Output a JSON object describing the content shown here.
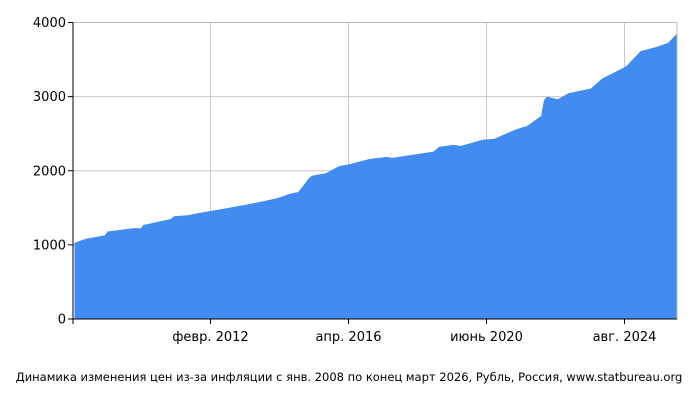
{
  "chart_data": {
    "type": "area",
    "title": "",
    "caption": "Динамика изменения цен из-за инфляции с янв. 2008 по конец март 2026, Рубль, Россия, www.statbureau.org",
    "xlabel": "",
    "ylabel": "",
    "ylim": [
      0,
      4000
    ],
    "xlim": [
      "2008-01",
      "2026-03"
    ],
    "yticks": [
      "0",
      "1000",
      "2000",
      "3000",
      "4000"
    ],
    "xticks": [
      {
        "date": "2012-02",
        "label": "февр. 2012"
      },
      {
        "date": "2016-04",
        "label": "апр. 2016"
      },
      {
        "date": "2020-06",
        "label": "июнь 2020"
      },
      {
        "date": "2024-08",
        "label": "авг. 2024"
      }
    ],
    "grid": true,
    "color": "#428bf0",
    "x": [
      "2008-01",
      "2008-05",
      "2008-12",
      "2009-01",
      "2009-11",
      "2010-01",
      "2010-02",
      "2010-12",
      "2011-01",
      "2011-06",
      "2011-10",
      "2012-06",
      "2013-03",
      "2013-10",
      "2014-03",
      "2014-07",
      "2014-10",
      "2014-11",
      "2015-02",
      "2015-03",
      "2015-08",
      "2016-01",
      "2016-04",
      "2016-05",
      "2016-12",
      "2017-06",
      "2017-08",
      "2018-11",
      "2019-01",
      "2019-06",
      "2019-09",
      "2020-05",
      "2020-09",
      "2021-05",
      "2021-09",
      "2022-02",
      "2022-03",
      "2022-04",
      "2022-08",
      "2022-12",
      "2023-08",
      "2023-12",
      "2024-05",
      "2024-08",
      "2024-09",
      "2025-02",
      "2025-07",
      "2025-08",
      "2025-12",
      "2026-03"
    ],
    "values": [
      1030,
      1080,
      1130,
      1180,
      1228,
      1222,
      1268,
      1350,
      1387,
      1400,
      1430,
      1480,
      1540,
      1593,
      1637,
      1690,
      1713,
      1758,
      1903,
      1933,
      1967,
      2065,
      2083,
      2092,
      2160,
      2187,
      2173,
      2258,
      2322,
      2349,
      2335,
      2420,
      2430,
      2560,
      2605,
      2740,
      2950,
      3000,
      2965,
      3047,
      3110,
      3240,
      3335,
      3393,
      3416,
      3614,
      3663,
      3672,
      3726,
      3843
    ]
  }
}
